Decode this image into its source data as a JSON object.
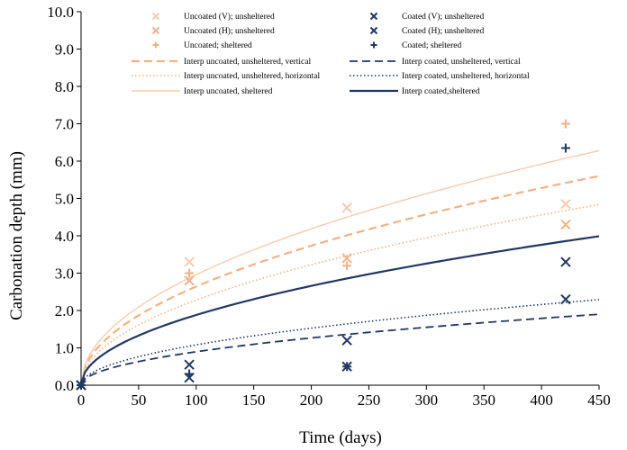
{
  "chart_data": {
    "type": "scatter",
    "title": "",
    "xlabel": "Time (days)",
    "ylabel": "Carbonation depth (mm)",
    "xlim": [
      0,
      450
    ],
    "ylim": [
      0,
      10
    ],
    "xticks": [
      0,
      50,
      100,
      150,
      200,
      250,
      300,
      350,
      400,
      450
    ],
    "yticks": [
      0,
      1,
      2,
      3,
      4,
      5,
      6,
      7,
      8,
      9,
      10
    ],
    "xtick_labels": [
      "0",
      "50",
      "100",
      "150",
      "200",
      "250",
      "300",
      "350",
      "400",
      "450"
    ],
    "ytick_labels": [
      "0.0",
      "1.0",
      "2.0",
      "3.0",
      "4.0",
      "5.0",
      "6.0",
      "7.0",
      "8.0",
      "9.0",
      "10.0"
    ],
    "grid": false,
    "legend_position": "top",
    "colors": {
      "uncoated": "#f4b183",
      "uncoated_light": "#f8cbad",
      "coated": "#203864"
    },
    "scatter_series": [
      {
        "name": "Uncoated (V); unsheltered",
        "marker": "x",
        "color": "#f8cbad",
        "points": [
          [
            0,
            0.0
          ],
          [
            94,
            3.3
          ],
          [
            231,
            4.75
          ],
          [
            421,
            4.85
          ]
        ]
      },
      {
        "name": "Uncoated (H); unsheltered",
        "marker": "x",
        "color": "#f4b183",
        "points": [
          [
            0,
            0.0
          ],
          [
            94,
            2.8
          ],
          [
            231,
            3.4
          ],
          [
            421,
            4.3
          ]
        ]
      },
      {
        "name": "Uncoated; sheltered",
        "marker": "+",
        "color": "#f4b183",
        "points": [
          [
            0,
            0.0
          ],
          [
            94,
            3.0
          ],
          [
            231,
            3.2
          ],
          [
            421,
            7.0
          ]
        ]
      },
      {
        "name": "Coated (V); unsheltered",
        "marker": "x",
        "color": "#203864",
        "points": [
          [
            0,
            0.0
          ],
          [
            94,
            0.55
          ],
          [
            231,
            1.2
          ],
          [
            421,
            2.3
          ]
        ]
      },
      {
        "name": "Coated (H); unsheltered",
        "marker": "x",
        "color": "#203864",
        "points": [
          [
            0,
            0.0
          ],
          [
            94,
            0.2
          ],
          [
            231,
            0.5
          ],
          [
            421,
            3.3
          ]
        ]
      },
      {
        "name": "Coated; sheltered",
        "marker": "+",
        "color": "#203864",
        "points": [
          [
            0,
            0.0
          ],
          [
            94,
            0.3
          ],
          [
            231,
            0.5
          ],
          [
            421,
            6.35
          ]
        ]
      }
    ],
    "fit_series": [
      {
        "name": "Interp uncoated, unsheltered, vertical",
        "dash": "dashed",
        "color": "#f4b183",
        "width": 2.2,
        "k": 0.264
      },
      {
        "name": "Interp coated, unsheltered, vertical",
        "dash": "dashed",
        "color": "#203864",
        "width": 1.8,
        "k": 0.0895
      },
      {
        "name": "Interp uncoated, unsheltered, horizontal",
        "dash": "dotted",
        "color": "#f4b183",
        "width": 1.6,
        "k": 0.228
      },
      {
        "name": "Interp coated, unsheltered, horizontal",
        "dash": "dotted",
        "color": "#203864",
        "width": 1.6,
        "k": 0.108
      },
      {
        "name": "Interp uncoated, sheltered",
        "dash": "solid",
        "color": "#f8cbad",
        "width": 1.4,
        "k": 0.296
      },
      {
        "name": "Interp coated,sheltered",
        "dash": "solid",
        "color": "#203864",
        "width": 2.2,
        "k": 0.188
      }
    ],
    "fit_model": "depth = k * sqrt(time)"
  }
}
